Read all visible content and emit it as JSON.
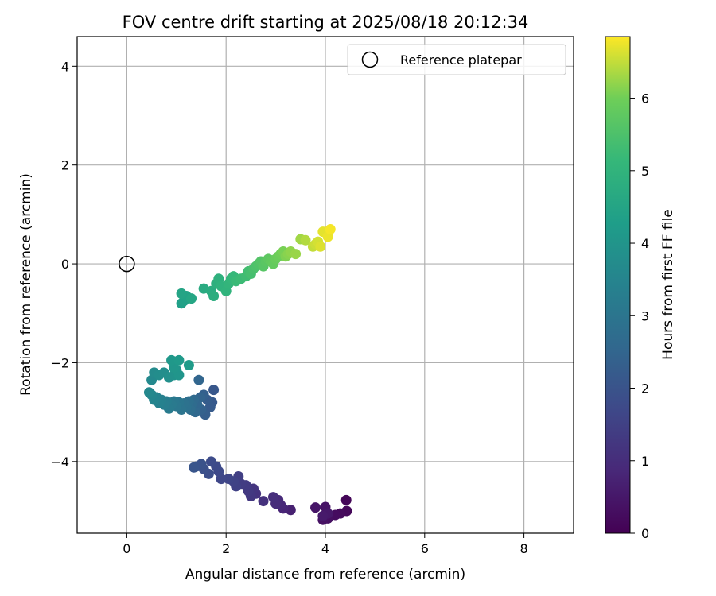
{
  "chart_data": {
    "type": "scatter",
    "title": "FOV centre drift starting at 2025/08/18 20:12:34",
    "xlabel": "Angular distance from reference (arcmin)",
    "ylabel": "Rotation from reference (arcmin)",
    "xlim": [
      -1.0,
      9.0
    ],
    "ylim": [
      -5.45,
      4.6
    ],
    "xticks": [
      "0",
      "2",
      "4",
      "6",
      "8"
    ],
    "yticks": [
      "−4",
      "−2",
      "0",
      "2",
      "4"
    ],
    "grid": true,
    "legend": {
      "placement": "top-right",
      "entries": [
        "Reference platepar"
      ]
    },
    "colorbar": {
      "label": "Hours from first FF file",
      "range": [
        0,
        6.85
      ],
      "ticks": [
        "0",
        "1",
        "2",
        "3",
        "4",
        "5",
        "6"
      ],
      "colormap": "viridis"
    },
    "reference_point": {
      "x": 0.0,
      "y": 0.0,
      "marker": "open-circle",
      "name": "Reference platepar"
    },
    "points_xyc": [
      [
        4.42,
        -4.78,
        0.1
      ],
      [
        4.43,
        -5.0,
        0.15
      ],
      [
        4.3,
        -5.05,
        0.2
      ],
      [
        4.2,
        -5.08,
        0.25
      ],
      [
        4.05,
        -5.15,
        0.3
      ],
      [
        3.95,
        -5.18,
        0.35
      ],
      [
        4.0,
        -4.92,
        0.4
      ],
      [
        3.8,
        -4.93,
        0.45
      ],
      [
        4.05,
        -5.05,
        0.5
      ],
      [
        3.95,
        -5.1,
        0.55
      ],
      [
        3.3,
        -4.98,
        0.7
      ],
      [
        3.15,
        -4.95,
        0.8
      ],
      [
        3.1,
        -4.88,
        0.85
      ],
      [
        3.05,
        -4.78,
        0.9
      ],
      [
        3.0,
        -4.85,
        0.95
      ],
      [
        2.95,
        -4.72,
        1.0
      ],
      [
        2.75,
        -4.8,
        1.1
      ],
      [
        2.6,
        -4.65,
        1.15
      ],
      [
        2.55,
        -4.55,
        1.2
      ],
      [
        2.5,
        -4.7,
        1.25
      ],
      [
        2.45,
        -4.6,
        1.3
      ],
      [
        2.4,
        -4.48,
        1.35
      ],
      [
        2.3,
        -4.45,
        1.4
      ],
      [
        2.25,
        -4.3,
        1.45
      ],
      [
        2.2,
        -4.5,
        1.5
      ],
      [
        2.15,
        -4.4,
        1.55
      ],
      [
        2.05,
        -4.35,
        1.6
      ],
      [
        1.9,
        -4.35,
        1.65
      ],
      [
        1.85,
        -4.2,
        1.7
      ],
      [
        1.8,
        -4.1,
        1.75
      ],
      [
        1.7,
        -4.0,
        1.8
      ],
      [
        1.65,
        -4.25,
        1.85
      ],
      [
        1.55,
        -4.15,
        1.9
      ],
      [
        1.5,
        -4.05,
        1.95
      ],
      [
        1.4,
        -4.1,
        2.0
      ],
      [
        1.35,
        -4.12,
        2.05
      ],
      [
        1.75,
        -2.55,
        2.1
      ],
      [
        1.72,
        -2.8,
        2.15
      ],
      [
        1.68,
        -2.9,
        2.2
      ],
      [
        1.62,
        -2.75,
        2.25
      ],
      [
        1.58,
        -3.05,
        2.3
      ],
      [
        1.55,
        -2.65,
        2.35
      ],
      [
        1.5,
        -2.95,
        2.4
      ],
      [
        1.48,
        -2.7,
        2.45
      ],
      [
        1.45,
        -2.35,
        2.5
      ],
      [
        1.42,
        -2.85,
        2.55
      ],
      [
        1.38,
        -3.0,
        2.6
      ],
      [
        1.35,
        -2.75,
        2.65
      ],
      [
        1.3,
        -2.85,
        2.7
      ],
      [
        1.28,
        -2.95,
        2.75
      ],
      [
        1.25,
        -2.78,
        2.8
      ],
      [
        1.2,
        -2.9,
        2.85
      ],
      [
        1.15,
        -2.82,
        2.9
      ],
      [
        1.1,
        -2.95,
        2.95
      ],
      [
        1.05,
        -2.8,
        3.0
      ],
      [
        1.0,
        -2.88,
        3.05
      ],
      [
        0.95,
        -2.78,
        3.1
      ],
      [
        0.9,
        -2.85,
        3.15
      ],
      [
        0.85,
        -2.93,
        3.2
      ],
      [
        0.8,
        -2.78,
        3.25
      ],
      [
        0.75,
        -2.85,
        3.3
      ],
      [
        0.7,
        -2.75,
        3.35
      ],
      [
        0.65,
        -2.82,
        3.4
      ],
      [
        0.6,
        -2.7,
        3.45
      ],
      [
        0.55,
        -2.75,
        3.5
      ],
      [
        0.5,
        -2.65,
        3.55
      ],
      [
        0.45,
        -2.6,
        3.6
      ],
      [
        0.5,
        -2.35,
        3.65
      ],
      [
        0.55,
        -2.2,
        3.7
      ],
      [
        0.65,
        -2.25,
        3.75
      ],
      [
        0.75,
        -2.2,
        3.8
      ],
      [
        0.85,
        -2.3,
        3.85
      ],
      [
        0.95,
        -2.25,
        3.9
      ],
      [
        1.0,
        -2.15,
        3.95
      ],
      [
        1.05,
        -2.25,
        4.0
      ],
      [
        0.95,
        -2.1,
        4.05
      ],
      [
        0.9,
        -1.95,
        4.1
      ],
      [
        1.05,
        -1.95,
        4.15
      ],
      [
        1.25,
        -2.05,
        4.2
      ],
      [
        1.1,
        -0.8,
        4.35
      ],
      [
        1.15,
        -0.75,
        4.4
      ],
      [
        1.2,
        -0.65,
        4.45
      ],
      [
        1.1,
        -0.6,
        4.5
      ],
      [
        1.3,
        -0.7,
        4.55
      ],
      [
        1.55,
        -0.5,
        4.7
      ],
      [
        1.7,
        -0.55,
        4.75
      ],
      [
        1.75,
        -0.65,
        4.8
      ],
      [
        1.8,
        -0.4,
        4.85
      ],
      [
        1.85,
        -0.3,
        4.9
      ],
      [
        1.9,
        -0.45,
        4.95
      ],
      [
        2.0,
        -0.55,
        5.0
      ],
      [
        2.05,
        -0.4,
        5.05
      ],
      [
        2.1,
        -0.3,
        5.1
      ],
      [
        2.15,
        -0.25,
        5.15
      ],
      [
        2.2,
        -0.35,
        5.2
      ],
      [
        2.3,
        -0.3,
        5.25
      ],
      [
        2.4,
        -0.25,
        5.3
      ],
      [
        2.45,
        -0.15,
        5.35
      ],
      [
        2.5,
        -0.2,
        5.4
      ],
      [
        2.55,
        -0.1,
        5.45
      ],
      [
        2.6,
        -0.05,
        5.5
      ],
      [
        2.65,
        0.0,
        5.55
      ],
      [
        2.7,
        0.05,
        5.6
      ],
      [
        2.75,
        -0.05,
        5.65
      ],
      [
        2.8,
        0.05,
        5.7
      ],
      [
        2.85,
        0.1,
        5.75
      ],
      [
        2.9,
        0.05,
        5.8
      ],
      [
        2.95,
        0.0,
        5.85
      ],
      [
        3.0,
        0.1,
        5.9
      ],
      [
        3.05,
        0.15,
        5.95
      ],
      [
        3.1,
        0.2,
        6.0
      ],
      [
        3.15,
        0.25,
        6.05
      ],
      [
        3.2,
        0.15,
        6.1
      ],
      [
        3.25,
        0.2,
        6.15
      ],
      [
        3.3,
        0.25,
        6.2
      ],
      [
        3.4,
        0.2,
        6.25
      ],
      [
        3.5,
        0.5,
        6.3
      ],
      [
        3.6,
        0.48,
        6.4
      ],
      [
        3.75,
        0.35,
        6.5
      ],
      [
        3.8,
        0.4,
        6.55
      ],
      [
        3.85,
        0.45,
        6.6
      ],
      [
        3.9,
        0.35,
        6.65
      ],
      [
        3.95,
        0.65,
        6.7
      ],
      [
        4.05,
        0.55,
        6.75
      ],
      [
        4.1,
        0.7,
        6.8
      ]
    ]
  }
}
